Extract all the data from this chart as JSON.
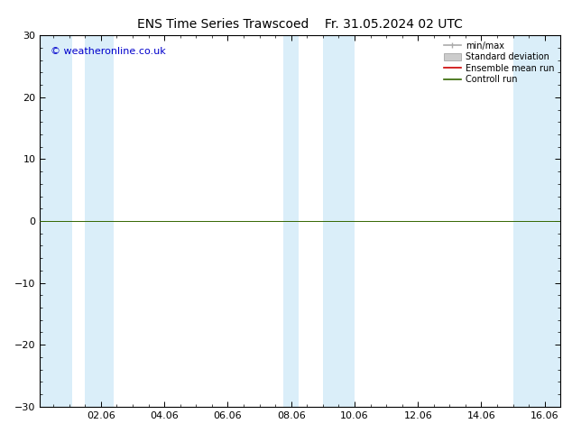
{
  "title_left": "ENS Time Series Trawscoed",
  "title_right": "Fr. 31.05.2024 02 UTC",
  "watermark": "© weatheronline.co.uk",
  "watermark_color": "#0000cc",
  "ylim": [
    -30,
    30
  ],
  "yticks": [
    -30,
    -20,
    -10,
    0,
    10,
    20,
    30
  ],
  "xtick_labels": [
    "02.06",
    "04.06",
    "06.06",
    "08.06",
    "10.06",
    "12.06",
    "14.06",
    "16.06"
  ],
  "xtick_positions_days": [
    2,
    4,
    6,
    8,
    10,
    12,
    14,
    16
  ],
  "xlim_start": 0.08,
  "xlim_end": 16.5,
  "blue_bands": [
    [
      0.08,
      1.0
    ],
    [
      1.5,
      0.9
    ],
    [
      7.75,
      0.5
    ],
    [
      9.0,
      1.0
    ],
    [
      15.0,
      1.5
    ]
  ],
  "blue_band_color": "#daeef9",
  "hline_y": 0,
  "hline_color": "#336600",
  "legend_minmax_color": "#aaaaaa",
  "legend_std_color": "#cccccc",
  "legend_mean_color": "#cc0000",
  "legend_control_color": "#336600",
  "background_color": "#ffffff",
  "axes_background": "#ffffff",
  "title_fontsize": 10,
  "tick_fontsize": 8,
  "watermark_fontsize": 8,
  "legend_fontsize": 7
}
